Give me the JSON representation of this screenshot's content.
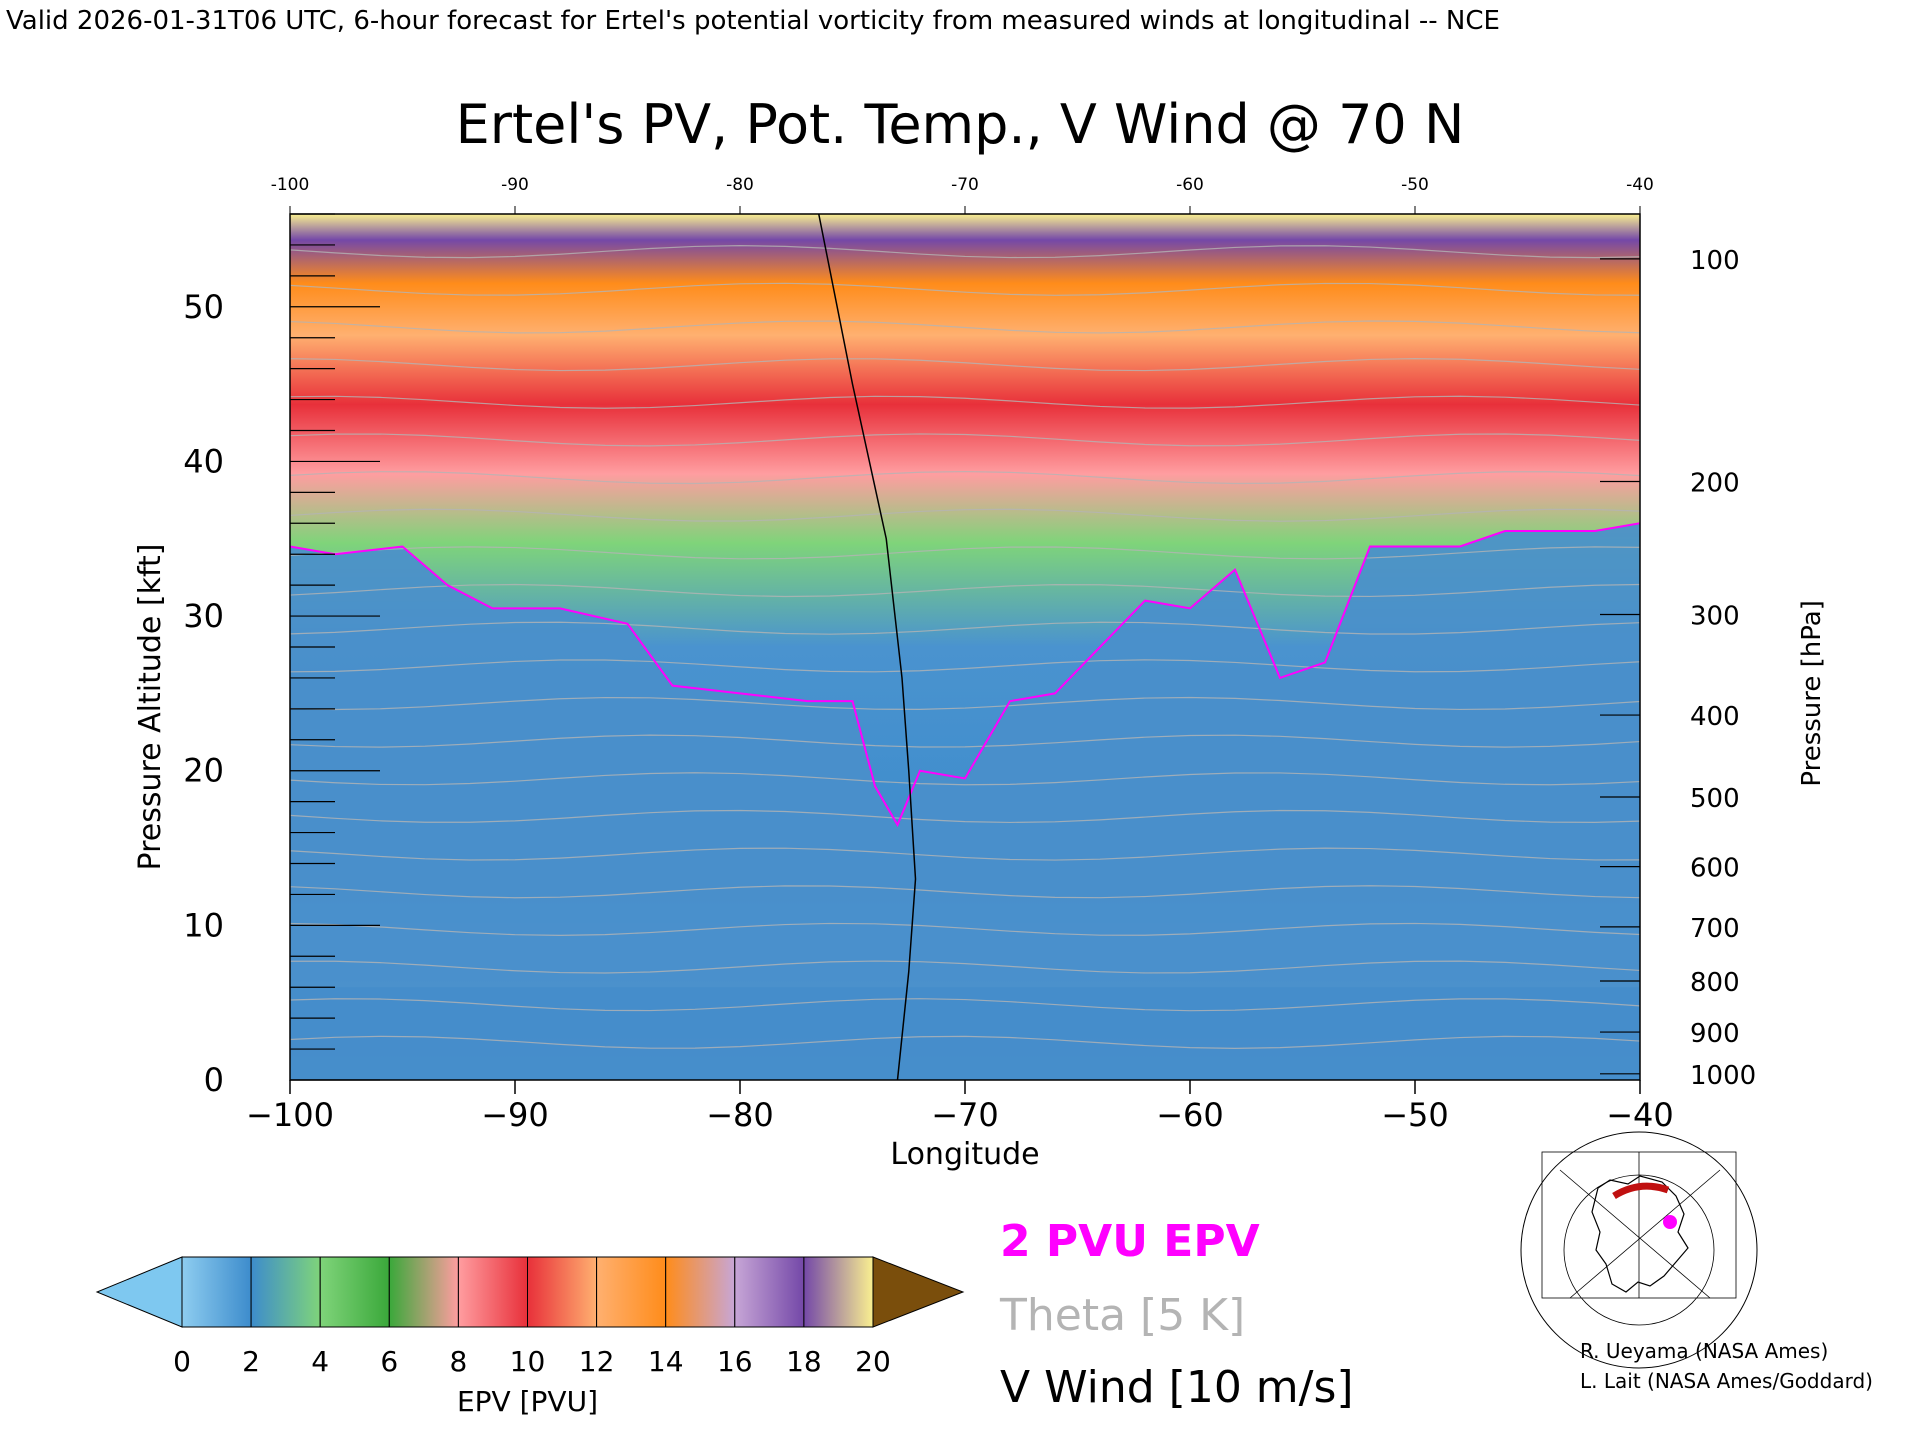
{
  "header": "Valid 2026-01-31T06 UTC, 6-hour forecast for Ertel's potential vorticity from measured winds at longitudinal -- NCE",
  "chart_data": {
    "type": "heatmap",
    "title": "Ertel's PV, Pot. Temp., V Wind @ 70 N",
    "xlabel": "Longitude",
    "ylabel": "Pressure Altitude [kft]",
    "y2label": "Pressure [hPa]",
    "xlim": [
      -100,
      -40
    ],
    "ylim": [
      0,
      56
    ],
    "x_ticks": [
      -100,
      -90,
      -80,
      -70,
      -60,
      -50,
      -40
    ],
    "y_ticks": [
      0,
      10,
      20,
      30,
      40,
      50
    ],
    "pressure_ticks": [
      {
        "hpa": 100,
        "kft": 53.1
      },
      {
        "hpa": 200,
        "kft": 38.7
      },
      {
        "hpa": 300,
        "kft": 30.1
      },
      {
        "hpa": 400,
        "kft": 23.6
      },
      {
        "hpa": 500,
        "kft": 18.3
      },
      {
        "hpa": 600,
        "kft": 13.8
      },
      {
        "hpa": 700,
        "kft": 9.9
      },
      {
        "hpa": 800,
        "kft": 6.4
      },
      {
        "hpa": 900,
        "kft": 3.1
      },
      {
        "hpa": 1000,
        "kft": 0.4
      }
    ],
    "grid": false,
    "epv_2pvu_boundary": {
      "lon": [
        -100,
        -98,
        -95,
        -93,
        -91,
        -88,
        -85,
        -83,
        -80,
        -77,
        -75,
        -74,
        -73,
        -72,
        -70,
        -68,
        -66,
        -64,
        -62,
        -60,
        -58,
        -56,
        -54,
        -52,
        -50,
        -48,
        -46,
        -44,
        -42,
        -40
      ],
      "kft": [
        34.5,
        34,
        34.5,
        32,
        30.5,
        30.5,
        29.5,
        25.5,
        25,
        24.5,
        24.5,
        19,
        16.5,
        20,
        19.5,
        24.5,
        25,
        28,
        31,
        30.5,
        33,
        26,
        27,
        34.5,
        34.5,
        34.5,
        35.5,
        35.5,
        35.5,
        36
      ]
    },
    "zero_wind_contour": {
      "lon": [
        -76.5,
        -75,
        -73.5,
        -72.8,
        -72.5,
        -72.2,
        -72.5,
        -73
      ],
      "kft": [
        56,
        45,
        35,
        26,
        20,
        13,
        7,
        0
      ]
    },
    "colorbar": {
      "label": "EPV [PVU]",
      "ticks": [
        0,
        2,
        4,
        6,
        8,
        10,
        12,
        14,
        16,
        18,
        20
      ],
      "colors": [
        "#8ecdf0",
        "#3d8ccc",
        "#7fd47a",
        "#3aa83a",
        "#ff9da0",
        "#e8303a",
        "#ffb070",
        "#ff8c1a",
        "#c7a6d6",
        "#7448a8",
        "#faf090",
        "#8a5a0a"
      ],
      "under_color": "#7ec8f0",
      "over_color": "#7a4e0c"
    },
    "legend": [
      {
        "label": "2 PVU EPV",
        "color": "#ff00ff"
      },
      {
        "label": "Theta [5 K]",
        "color": "#b4b4b4"
      },
      {
        "label": "V Wind [10 m/s]",
        "color": "#000000"
      }
    ]
  },
  "credits": [
    "R. Ueyama (NASA Ames)",
    "L. Lait (NASA Ames/Goddard)"
  ]
}
